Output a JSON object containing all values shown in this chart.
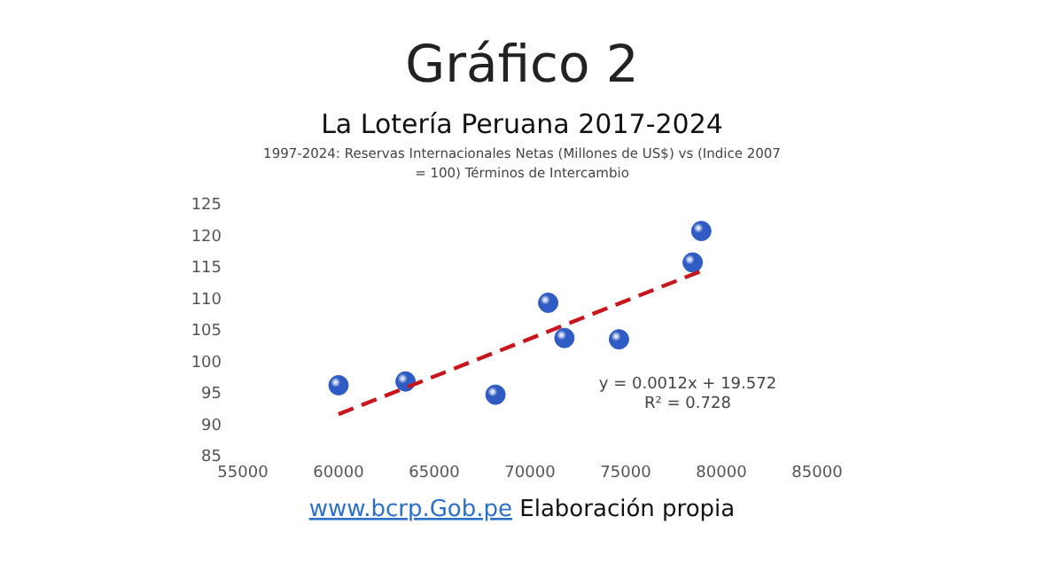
{
  "chart_data": {
    "type": "scatter",
    "title": "Gráfico 2",
    "subtitle": "La Lotería Peruana 2017-2024",
    "annotations": [
      "1997-2024: Reservas Internacionales Netas (Millones de US$) vs (Indice 2007 = 100)  Términos de Intercambio",
      "y = 0.0012x + 19.572",
      "R² = 0.728",
      "www.bcrp.Gob.pe",
      "Elaboración propia"
    ],
    "xlim": [
      55000,
      85000
    ],
    "xticks": [
      55000,
      60000,
      65000,
      70000,
      75000,
      80000,
      85000
    ],
    "ylim": [
      85,
      125
    ],
    "yticks": [
      85,
      90,
      95,
      100,
      105,
      110,
      115,
      120,
      125
    ],
    "grid": false,
    "series": [
      {
        "marker": "circle",
        "color": "#2f5cc4",
        "x": [
          60000,
          63500,
          68200,
          70950,
          71800,
          74650,
          78500,
          78950
        ],
        "values": [
          96.2,
          96.8,
          94.7,
          109.3,
          103.7,
          103.5,
          115.7,
          120.7
        ]
      },
      {
        "type": "line",
        "color": "#c8161d",
        "line_style": "dashed",
        "x": [
          60000,
          79000
        ],
        "values": [
          91.6,
          114.4
        ]
      }
    ]
  }
}
